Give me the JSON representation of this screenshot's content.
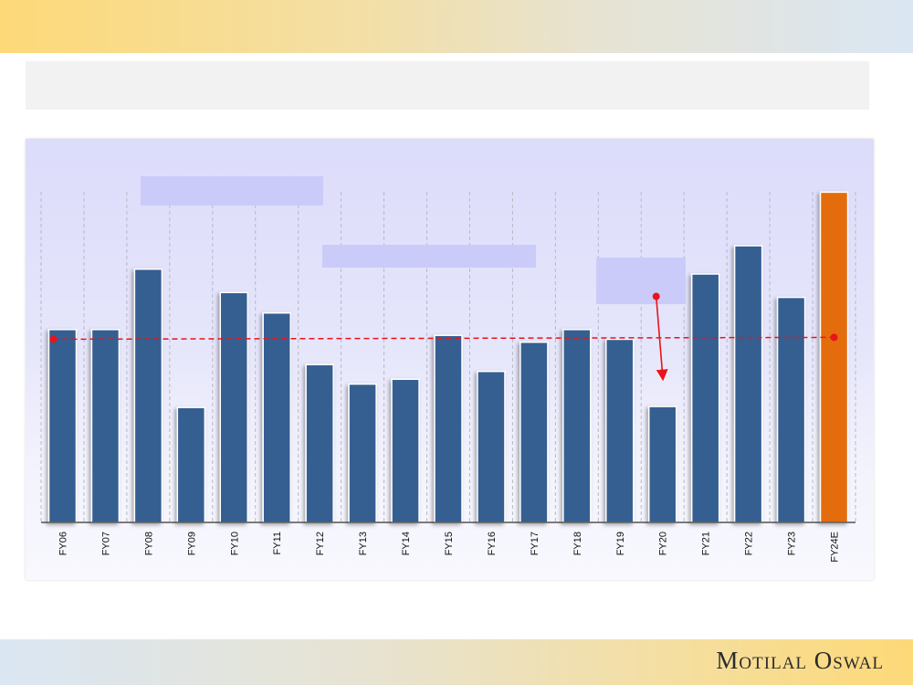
{
  "brand": {
    "name": "Motilal Oswal"
  },
  "colors": {
    "bar": "#355e91",
    "bar_highlight": "#e46c0a",
    "average_line": "#e8141a",
    "callout": "#cbcbfa"
  },
  "chart_data": {
    "type": "bar",
    "title": "",
    "xlabel": "",
    "ylabel": "",
    "categories": [
      "FY06",
      "FY07",
      "FY08",
      "FY09",
      "FY10",
      "FY11",
      "FY12",
      "FY13",
      "FY14",
      "FY15",
      "FY16",
      "FY17",
      "FY18",
      "FY19",
      "FY20",
      "FY21",
      "FY22",
      "FY23",
      "FY24E"
    ],
    "values": [
      19.8,
      19.8,
      26.0,
      11.8,
      23.6,
      21.5,
      16.2,
      14.2,
      14.7,
      19.2,
      15.5,
      18.5,
      19.8,
      18.8,
      11.9,
      25.5,
      28.4,
      23.1,
      33.9
    ],
    "highlight_index": 18,
    "average": 18.9,
    "ylim": [
      0,
      36
    ],
    "grid": "vertical-dashed",
    "annotations": [
      {
        "type": "arrow",
        "from_category": "FY20",
        "from_value": 23.2,
        "to_value": 15.1
      }
    ]
  }
}
